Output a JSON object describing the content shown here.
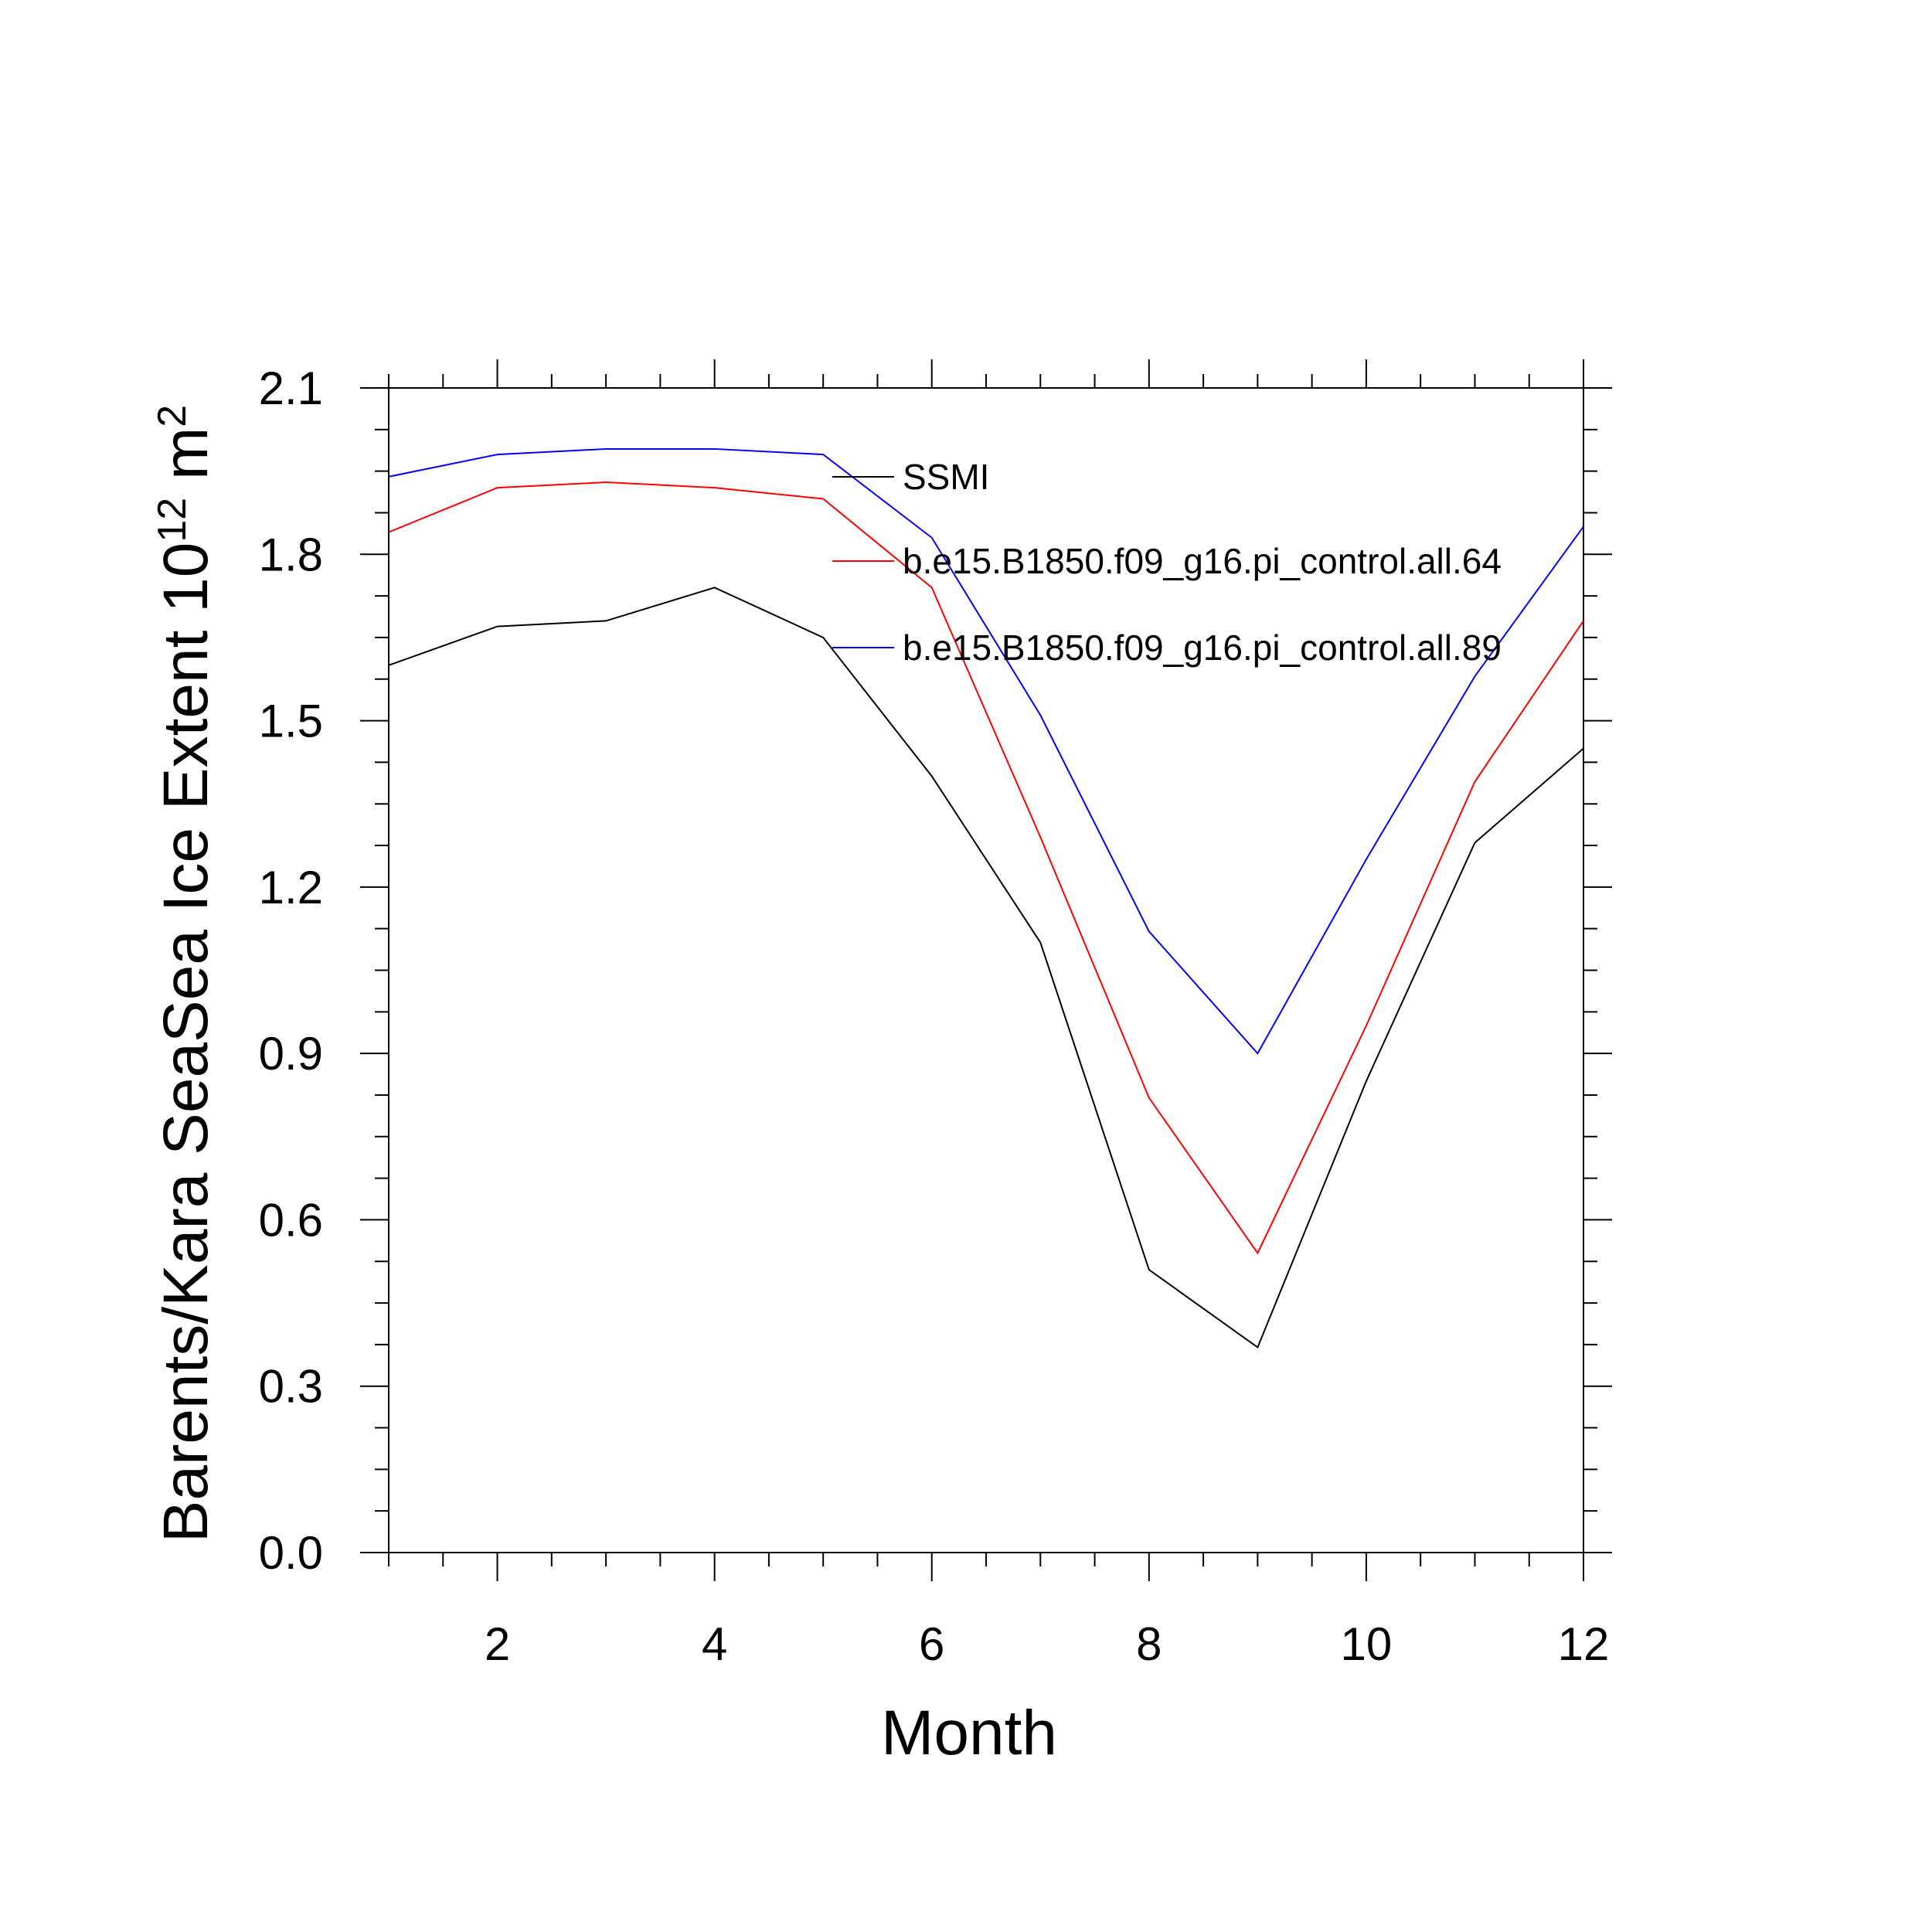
{
  "chart_data": {
    "type": "line",
    "title": "",
    "xlabel": "Month",
    "ylabel": {
      "main": "Barents/Kara SeaSea Ice Extent 10",
      "sup1": "12",
      "mid": " m",
      "sup2": "2"
    },
    "xlim": [
      1,
      12
    ],
    "ylim": [
      0.0,
      2.1
    ],
    "xticks": [
      2,
      4,
      6,
      8,
      10,
      12
    ],
    "xtick_labels": [
      "2",
      "4",
      "6",
      "8",
      "10",
      "12"
    ],
    "yticks": [
      0.0,
      0.3,
      0.6,
      0.9,
      1.2,
      1.5,
      1.8,
      2.1
    ],
    "ytick_labels": [
      "0.0",
      "0.3",
      "0.6",
      "0.9",
      "1.2",
      "1.5",
      "1.8",
      "2.1"
    ],
    "x": [
      1,
      2,
      3,
      4,
      5,
      6,
      7,
      8,
      9,
      10,
      11,
      12
    ],
    "series": [
      {
        "name": "SSMI",
        "color": "#000000",
        "values": [
          1.6,
          1.67,
          1.68,
          1.74,
          1.65,
          1.4,
          1.1,
          0.51,
          0.37,
          0.85,
          1.28,
          1.45
        ]
      },
      {
        "name": "b.e15.B1850.f09_g16.pi_control.all.64",
        "color": "#ff0000",
        "values": [
          1.84,
          1.92,
          1.93,
          1.92,
          1.9,
          1.74,
          1.29,
          0.82,
          0.54,
          0.95,
          1.39,
          1.68
        ]
      },
      {
        "name": "b.e15.B1850.f09_g16.pi_control.all.89",
        "color": "#0000ff",
        "values": [
          1.94,
          1.98,
          1.99,
          1.99,
          1.98,
          1.83,
          1.51,
          1.12,
          0.9,
          1.25,
          1.58,
          1.85
        ]
      }
    ],
    "legend_position": "top-right",
    "grid": false
  }
}
